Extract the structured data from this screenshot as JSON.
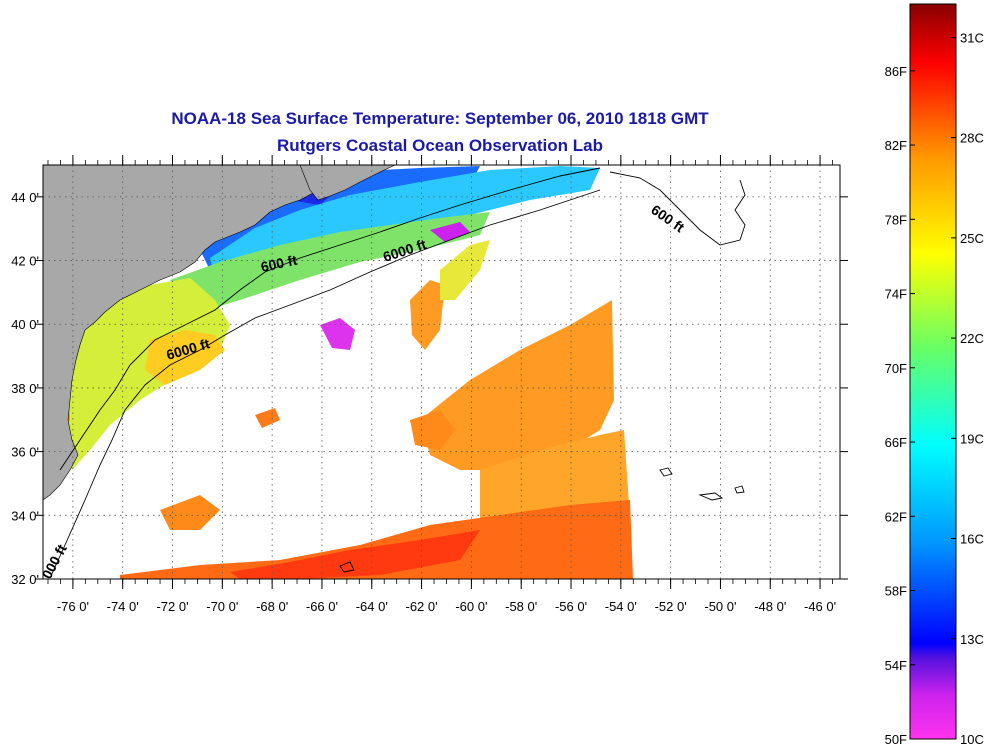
{
  "title": {
    "line1": "NOAA-18 Sea Surface Temperature:  September 06, 2010 1818 GMT",
    "line2": "Rutgers Coastal Ocean Observation Lab"
  },
  "map": {
    "lon_labels": [
      "-76 0'",
      "-74 0'",
      "-72 0'",
      "-70 0'",
      "-68 0'",
      "-66 0'",
      "-64 0'",
      "-62 0'",
      "-60 0'",
      "-58 0'",
      "-56 0'",
      "-54 0'",
      "-52 0'",
      "-50 0'",
      "-48 0'",
      "-46 0'"
    ],
    "lon_values": [
      -76,
      -74,
      -72,
      -70,
      -68,
      -66,
      -64,
      -62,
      -60,
      -58,
      -56,
      -54,
      -52,
      -50,
      -48,
      -46
    ],
    "lat_labels": [
      "44 0'",
      "42 0'",
      "40 0'",
      "38 0'",
      "36 0'",
      "34 0'",
      "32 0'"
    ],
    "lat_values": [
      44,
      42,
      40,
      38,
      36,
      34,
      32
    ],
    "lon_range": [
      -77.2,
      -45.2
    ],
    "lat_range": [
      32,
      45
    ],
    "contour_labels": [
      "600 ft",
      "6000 ft",
      "6000 ft",
      "600 ft",
      "000 ft"
    ],
    "colors": {
      "land": "#a8a8a8",
      "ocean_no_data": "#ffffff"
    }
  },
  "colorbar": {
    "f_labels": [
      "86F",
      "82F",
      "78F",
      "74F",
      "70F",
      "66F",
      "62F",
      "58F",
      "54F",
      "50F"
    ],
    "c_labels": [
      "31C",
      "28C",
      "25C",
      "22C",
      "19C",
      "16C",
      "13C",
      "10C"
    ],
    "range_c": [
      10,
      32
    ],
    "colors": [
      "#ff33ee",
      "#6611dd",
      "#0000ff",
      "#0099ff",
      "#00ffff",
      "#66ff66",
      "#ffff00",
      "#ff8800",
      "#ff0000",
      "#880000"
    ]
  }
}
